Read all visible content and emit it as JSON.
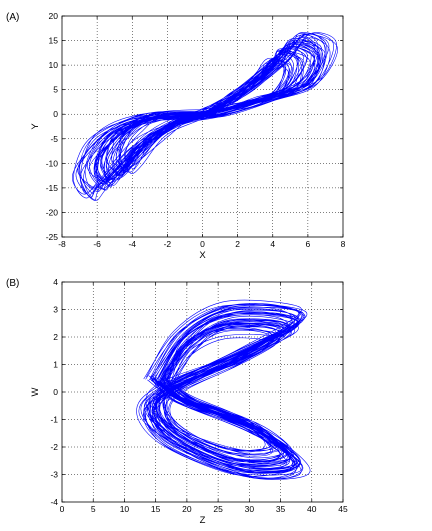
{
  "chart_data": [
    {
      "type": "line",
      "panel_label": "(A)",
      "xlabel": "X",
      "ylabel": "Y",
      "xlim": [
        -8,
        8
      ],
      "ylim": [
        -25,
        20
      ],
      "xticks": [
        -8,
        -6,
        -4,
        -2,
        0,
        2,
        4,
        6,
        8
      ],
      "yticks": [
        -25,
        -20,
        -15,
        -10,
        -5,
        0,
        5,
        10,
        15,
        20
      ],
      "grid": true,
      "line_color": "#0000ff",
      "series": [
        {
          "description_points": [
            [
              0,
              0
            ],
            [
              2,
              4
            ],
            [
              4,
              10
            ],
            [
              5,
              14
            ],
            [
              6.2,
              12
            ],
            [
              5.5,
              6
            ],
            [
              3.5,
              3
            ],
            [
              1,
              0.5
            ],
            [
              -1,
              -1
            ],
            [
              -3,
              -5
            ],
            [
              -4.8,
              -12
            ],
            [
              -5.5,
              -14
            ],
            [
              -6,
              -10
            ],
            [
              -5,
              -4
            ],
            [
              -3,
              -0.5
            ],
            [
              0,
              0
            ]
          ]
        }
      ]
    },
    {
      "type": "line",
      "panel_label": "(B)",
      "xlabel": "Z",
      "ylabel": "W",
      "xlim": [
        0,
        45
      ],
      "ylim": [
        -4,
        4
      ],
      "xticks": [
        0,
        5,
        10,
        15,
        20,
        25,
        30,
        35,
        40,
        45
      ],
      "yticks": [
        -4,
        -3,
        -2,
        -1,
        0,
        1,
        2,
        3,
        4
      ],
      "grid": true,
      "line_color": "#0000ff",
      "series": [
        {
          "description_points": [
            [
              16,
              0.4
            ],
            [
              20,
              1.8
            ],
            [
              26,
              2.6
            ],
            [
              34,
              2.6
            ],
            [
              36,
              2.2
            ],
            [
              28,
              1.2
            ],
            [
              18,
              0.2
            ],
            [
              15,
              -0.6
            ],
            [
              18,
              -1.6
            ],
            [
              27,
              -2.5
            ],
            [
              34,
              -2.6
            ],
            [
              36,
              -2.2
            ],
            [
              30,
              -1.2
            ],
            [
              20,
              -0.3
            ],
            [
              16,
              0.4
            ]
          ]
        }
      ]
    }
  ]
}
